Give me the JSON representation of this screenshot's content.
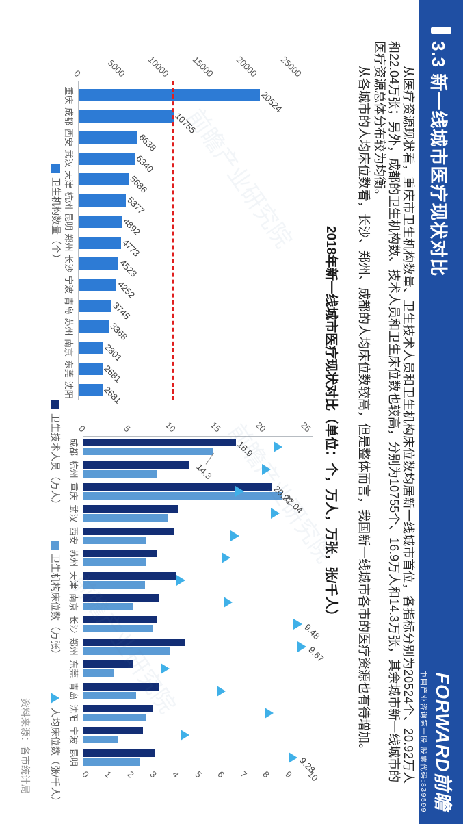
{
  "header": {
    "title": "3.3 新一线城市医疗现状对比"
  },
  "logo": {
    "brand": "FORWARD前瞻",
    "tagline": "中国产业咨询第一股 股票代码:839599"
  },
  "paragraphs": [
    "从医疗资源现状看，重庆市卫生机构数量、卫生技术人员和卫生机构床位数均居新一线城市首位，各指标分别为20524个、20.92万人和22.04万张；另外，成都的卫生机构数、技术人员和卫生床位数也较高，分别为10755个、16.9万人和14.3万张，其余城市新一线城市的医疗资源总体分布较为均衡。",
    "从各城市的人均床位数看，长沙、郑州、成都的人均床位数较高，但是整体而言，我国新一线城市各市的医疗资源也有待增加。"
  ],
  "figure_title": "2018年新一线城市医疗现状对比（单位：个，万人，万张，张/千人）",
  "source": "资料来源：各市统计局",
  "watermark": "前瞻产业研究院",
  "colors": {
    "band": "#1f4fa3",
    "chart1_bar": "#2d7bd5",
    "staff_bar": "#132e75",
    "beds_bar": "#5b9bd5",
    "triangle": "#3fb0e8",
    "refline": "#e01f1f"
  },
  "chart_data": [
    {
      "type": "bar",
      "series_name": "卫生机构数量（个）",
      "categories": [
        "重庆",
        "成都",
        "西安",
        "武汉",
        "天津",
        "杭州",
        "昆明",
        "郑州",
        "长沙",
        "宁波",
        "青岛",
        "苏州",
        "南京",
        "东莞",
        "沈阳"
      ],
      "values": [
        20524,
        10755,
        6638,
        6340,
        5686,
        5377,
        4892,
        4773,
        4523,
        4252,
        3745,
        3368,
        2801,
        2681,
        2681
      ],
      "ylabel": "",
      "xlabel": "",
      "ylim": [
        0,
        25000
      ],
      "yticks": [
        0,
        5000,
        10000,
        15000,
        20000,
        25000
      ],
      "grid": false,
      "legend_position": "bottom",
      "reference_line": {
        "value": 10755,
        "style": "dashed"
      }
    },
    {
      "type": "bar+scatter",
      "title": "2018年新一线城市医疗现状对比（单位：个，万人，万张，张/千人）",
      "categories": [
        "成都",
        "杭州",
        "重庆",
        "武汉",
        "西安",
        "苏州",
        "天津",
        "南京",
        "长沙",
        "郑州",
        "东莞",
        "青岛",
        "沈阳",
        "宁波",
        "昆明"
      ],
      "series": [
        {
          "name": "卫生技术人员（万人）",
          "type": "bar",
          "axis": "left",
          "values": [
            16.9,
            11.7,
            20.92,
            10.5,
            10.0,
            8.2,
            10.2,
            8.4,
            8.1,
            11.3,
            5.5,
            8.3,
            7.7,
            6.6,
            7.9
          ]
        },
        {
          "name": "卫生机构床位数（万张）",
          "type": "bar",
          "axis": "left",
          "values": [
            14.3,
            8.1,
            22.04,
            9.4,
            6.9,
            6.9,
            6.8,
            5.5,
            7.7,
            9.6,
            3.3,
            5.8,
            7.0,
            3.9,
            6.3
          ]
        },
        {
          "name": "人均床位数（张/千人）",
          "type": "triangle",
          "axis": "right",
          "values": [
            8.6,
            8.1,
            6.9,
            8.5,
            6.7,
            6.3,
            4.3,
            6.4,
            9.48,
            9.67,
            3.6,
            6.1,
            8.2,
            4.5,
            9.28
          ]
        }
      ],
      "left_ylim": [
        0,
        25
      ],
      "left_ticks": [
        0,
        5,
        10,
        15,
        20,
        25
      ],
      "right_ylim": [
        0,
        10
      ],
      "right_ticks": [
        0,
        1,
        2,
        3,
        4,
        5,
        6,
        7,
        8,
        9,
        10
      ],
      "grid": false,
      "legend_position": "bottom",
      "data_labels": [
        {
          "series": 0,
          "index": 0,
          "text": "16.9"
        },
        {
          "series": 1,
          "index": 0,
          "text": "14.3",
          "leader": true
        },
        {
          "series": 0,
          "index": 2,
          "text": "20.92"
        },
        {
          "series": 1,
          "index": 2,
          "text": "22.04"
        },
        {
          "series": 2,
          "index": 8,
          "text": "9.48"
        },
        {
          "series": 2,
          "index": 9,
          "text": "9.67"
        },
        {
          "series": 2,
          "index": 14,
          "text": "9.28"
        }
      ]
    }
  ]
}
